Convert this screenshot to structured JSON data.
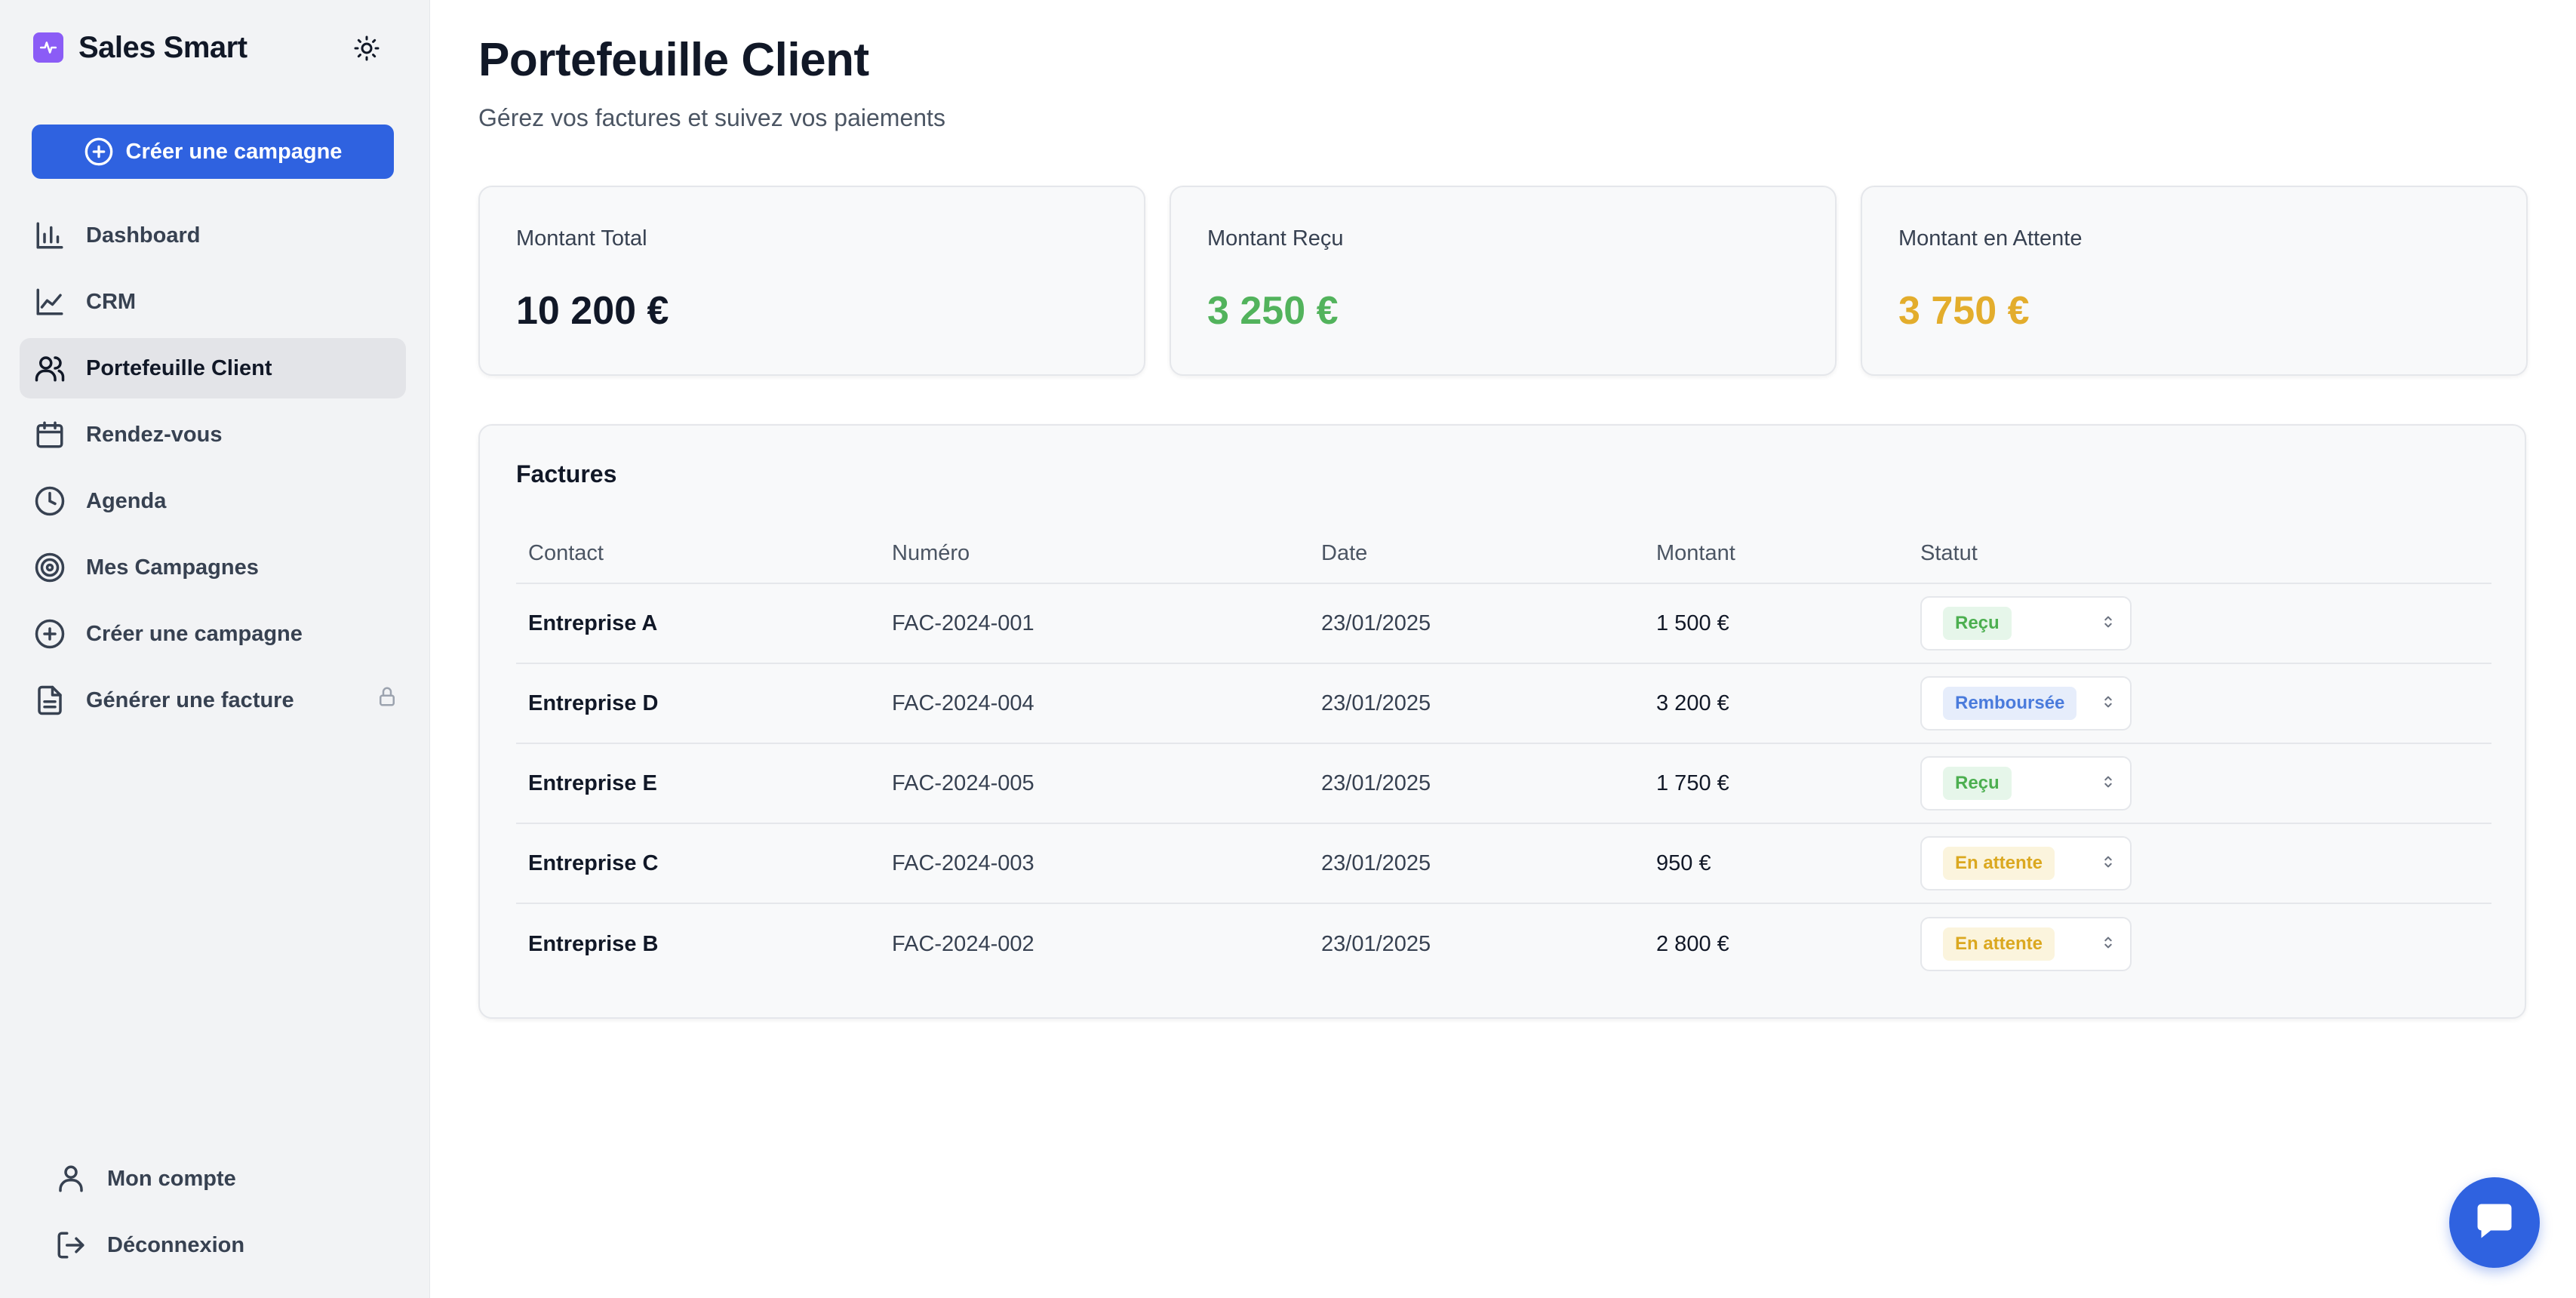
{
  "app": {
    "name": "Sales Smart"
  },
  "sidebar": {
    "create_button": "Créer une campagne",
    "items": [
      {
        "label": "Dashboard",
        "icon": "bar-chart-icon"
      },
      {
        "label": "CRM",
        "icon": "line-chart-icon"
      },
      {
        "label": "Portefeuille Client",
        "icon": "users-icon",
        "active": true
      },
      {
        "label": "Rendez-vous",
        "icon": "calendar-icon"
      },
      {
        "label": "Agenda",
        "icon": "clock-icon"
      },
      {
        "label": "Mes Campagnes",
        "icon": "target-icon"
      },
      {
        "label": "Créer une campagne",
        "icon": "plus-circle-icon"
      },
      {
        "label": "Générer une facture",
        "icon": "file-icon",
        "locked": true
      }
    ],
    "bottom": [
      {
        "label": "Mon compte",
        "icon": "user-icon"
      },
      {
        "label": "Déconnexion",
        "icon": "logout-icon"
      }
    ]
  },
  "header": {
    "title": "Portefeuille Client",
    "subtitle": "Gérez vos factures et suivez vos paiements"
  },
  "stats": [
    {
      "label": "Montant Total",
      "value": "10 200 €",
      "color": "#111827"
    },
    {
      "label": "Montant Reçu",
      "value": "3 250 €",
      "color": "#52b35c"
    },
    {
      "label": "Montant en Attente",
      "value": "3 750 €",
      "color": "#e3ad2c"
    }
  ],
  "invoices": {
    "title": "Factures",
    "columns": [
      "Contact",
      "Numéro",
      "Date",
      "Montant",
      "Statut"
    ],
    "rows": [
      {
        "contact": "Entreprise A",
        "number": "FAC-2024-001",
        "date": "23/01/2025",
        "amount": "1 500 €",
        "status": "Reçu"
      },
      {
        "contact": "Entreprise D",
        "number": "FAC-2024-004",
        "date": "23/01/2025",
        "amount": "3 200 €",
        "status": "Remboursée"
      },
      {
        "contact": "Entreprise E",
        "number": "FAC-2024-005",
        "date": "23/01/2025",
        "amount": "1 750 €",
        "status": "Reçu"
      },
      {
        "contact": "Entreprise C",
        "number": "FAC-2024-003",
        "date": "23/01/2025",
        "amount": "950 €",
        "status": "En attente"
      },
      {
        "contact": "Entreprise B",
        "number": "FAC-2024-002",
        "date": "23/01/2025",
        "amount": "2 800 €",
        "status": "En attente"
      }
    ]
  },
  "colors": {
    "accent": "#2f62e0",
    "brand": "#8b5cf6"
  }
}
